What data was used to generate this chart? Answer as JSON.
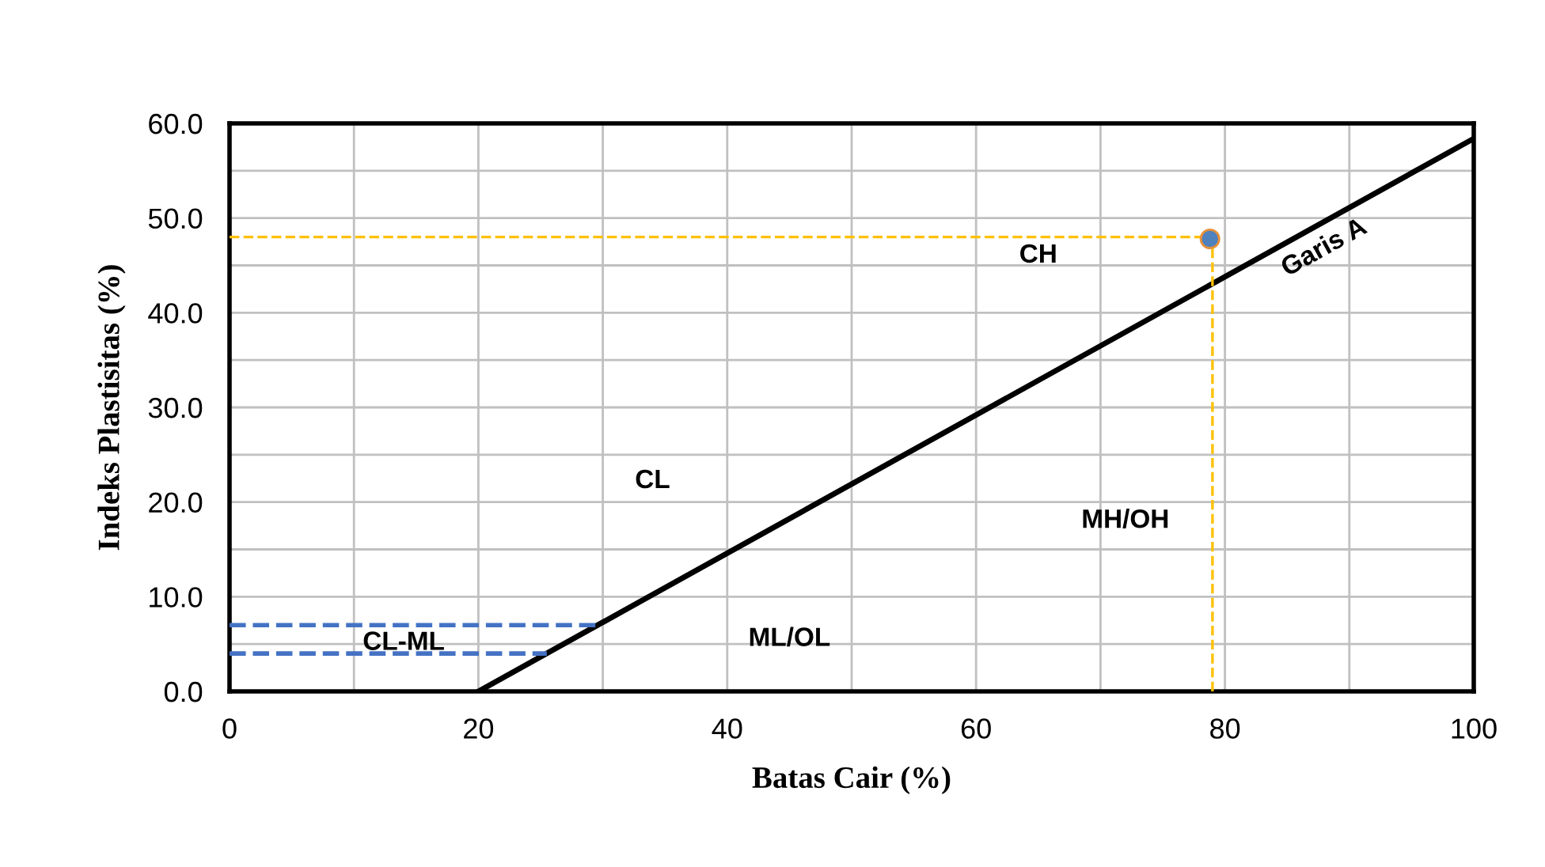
{
  "chart_data": {
    "type": "line",
    "xlabel": "Batas Cair (%)",
    "ylabel": "Indeks Plastisitas (%)",
    "xlim": [
      0,
      100
    ],
    "ylim": [
      0,
      60
    ],
    "xticks": [
      0,
      {
        "value": 10,
        "label": null
      },
      20,
      {
        "value": 30,
        "label": null
      },
      40,
      {
        "value": 50,
        "label": null
      },
      60,
      {
        "value": 70,
        "label": null
      },
      80,
      {
        "value": 90,
        "label": null
      },
      100
    ],
    "yticks": [
      {
        "value": 0,
        "label": "0.0"
      },
      {
        "value": 5,
        "label": null
      },
      {
        "value": 10,
        "label": "10.0"
      },
      {
        "value": 15,
        "label": null
      },
      {
        "value": 20,
        "label": "20.0"
      },
      {
        "value": 25,
        "label": null
      },
      {
        "value": 30,
        "label": "30.0"
      },
      {
        "value": 35,
        "label": null
      },
      {
        "value": 40,
        "label": "40.0"
      },
      {
        "value": 45,
        "label": null
      },
      {
        "value": 50,
        "label": "50.0"
      },
      {
        "value": 55,
        "label": null
      },
      {
        "value": 60,
        "label": "60.0"
      }
    ],
    "grid": true,
    "series": [
      {
        "color": "#000000",
        "x": [
          20,
          100
        ],
        "values": [
          0,
          58.4
        ],
        "line_style": "solid"
      },
      {
        "color": "#ffc000",
        "x": [
          0,
          79
        ],
        "values": [
          48,
          48
        ],
        "line_style": "dashed"
      },
      {
        "color": "#ffc000",
        "x": [
          79,
          79
        ],
        "values": [
          0,
          48
        ],
        "line_style": "dashed"
      },
      {
        "color": "#4472c4",
        "x": [
          0,
          29.6
        ],
        "values": [
          7,
          7
        ],
        "line_style": "dashed"
      },
      {
        "color": "#4472c4",
        "x": [
          0,
          25.5
        ],
        "values": [
          4,
          4
        ],
        "line_style": "dashed"
      },
      {
        "type": "scatter",
        "color": "#4f81bd",
        "x": [
          78.8
        ],
        "values": [
          47.8
        ],
        "marker": "circle"
      }
    ],
    "annotations": [
      "CH",
      "CL",
      "MH/OH",
      "ML/OL",
      "CL-ML",
      "Garis A"
    ]
  }
}
